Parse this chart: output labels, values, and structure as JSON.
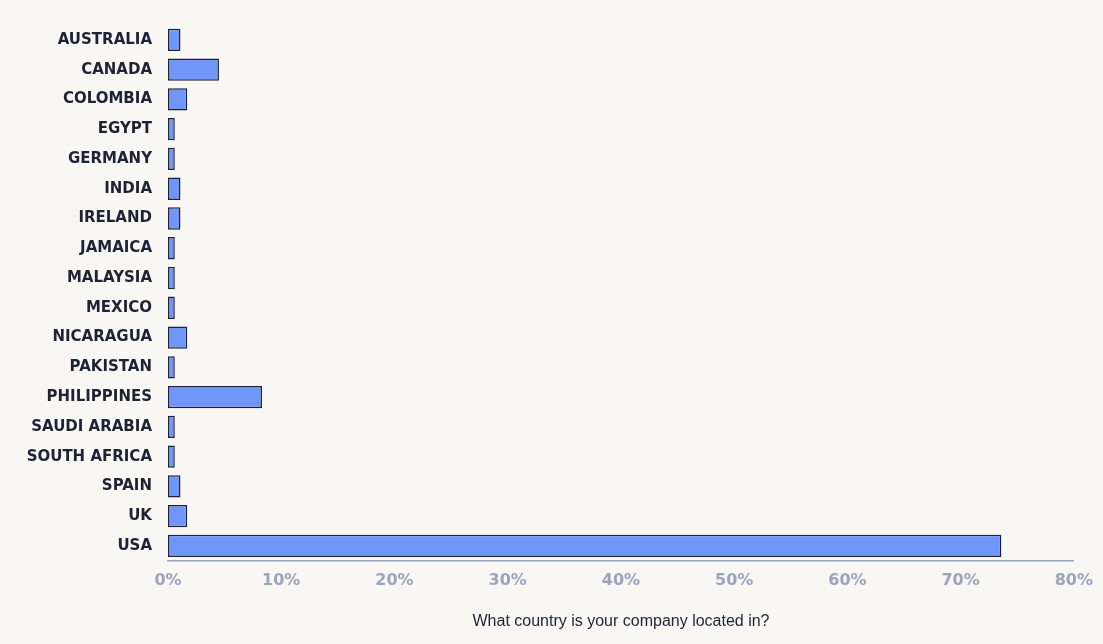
{
  "chart_data": {
    "type": "bar",
    "orientation": "horizontal",
    "xlabel": "What country is your company located in?",
    "categories": [
      "AUSTRALIA",
      "CANADA",
      "COLOMBIA",
      "EGYPT",
      "GERMANY",
      "INDIA",
      "IRELAND",
      "JAMAICA",
      "MALAYSIA",
      "MEXICO",
      "NICARAGUA",
      "PAKISTAN",
      "PHILIPPINES",
      "SAUDI ARABIA",
      "SOUTH AFRICA",
      "SPAIN",
      "UK",
      "USA"
    ],
    "values": [
      1.1,
      4.5,
      1.7,
      0.6,
      0.6,
      1.1,
      1.1,
      0.6,
      0.6,
      0.6,
      1.7,
      0.6,
      8.3,
      0.6,
      0.6,
      1.1,
      1.7,
      73.6
    ],
    "color": "#7096f8",
    "xlim": [
      0,
      80
    ],
    "xticks": [
      {
        "value": 0,
        "label": "0%"
      },
      {
        "value": 10,
        "label": "10%"
      },
      {
        "value": 20,
        "label": "20%"
      },
      {
        "value": 30,
        "label": "30%"
      },
      {
        "value": 40,
        "label": "40%"
      },
      {
        "value": 50,
        "label": "50%"
      },
      {
        "value": 60,
        "label": "60%"
      },
      {
        "value": 70,
        "label": "70%"
      },
      {
        "value": 80,
        "label": "80%"
      }
    ],
    "grid": false,
    "legend": false
  }
}
